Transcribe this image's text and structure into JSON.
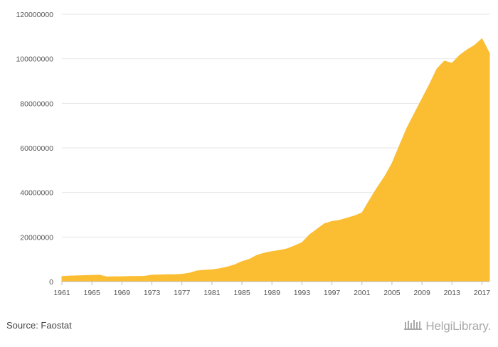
{
  "chart_data": {
    "type": "area",
    "title": "",
    "xlabel": "",
    "ylabel": "",
    "ylim": [
      0,
      120000000
    ],
    "yticks": [
      0,
      20000000,
      40000000,
      60000000,
      80000000,
      100000000,
      120000000
    ],
    "ytick_labels": [
      "0",
      "20000000",
      "40000000",
      "60000000",
      "80000000",
      "100000000",
      "120000000"
    ],
    "xlim": [
      1961,
      2018
    ],
    "xticks": [
      1961,
      1965,
      1969,
      1973,
      1977,
      1981,
      1985,
      1989,
      1993,
      1997,
      2001,
      2005,
      2009,
      2013,
      2017
    ],
    "xtick_labels": [
      "1961",
      "1965",
      "1969",
      "1973",
      "1977",
      "1981",
      "1985",
      "1989",
      "1993",
      "1997",
      "2001",
      "2005",
      "2009",
      "2013",
      "2017"
    ],
    "grid": true,
    "legend": "none",
    "color": "#FBBE32",
    "x": [
      1961,
      1962,
      1963,
      1964,
      1965,
      1966,
      1967,
      1968,
      1969,
      1970,
      1971,
      1972,
      1973,
      1974,
      1975,
      1976,
      1977,
      1978,
      1979,
      1980,
      1981,
      1982,
      1983,
      1984,
      1985,
      1986,
      1987,
      1988,
      1989,
      1990,
      1991,
      1992,
      1993,
      1994,
      1995,
      1996,
      1997,
      1998,
      1999,
      2000,
      2001,
      2002,
      2003,
      2004,
      2005,
      2006,
      2007,
      2008,
      2009,
      2010,
      2011,
      2012,
      2013,
      2014,
      2015,
      2016,
      2017,
      2018
    ],
    "y": [
      2300000,
      2500000,
      2600000,
      2700000,
      2800000,
      2900000,
      2100000,
      2200000,
      2200000,
      2300000,
      2300000,
      2400000,
      2900000,
      3000000,
      3100000,
      3100000,
      3300000,
      3800000,
      4800000,
      5100000,
      5300000,
      5800000,
      6500000,
      7500000,
      9000000,
      10000000,
      11800000,
      12800000,
      13500000,
      14000000,
      14700000,
      16000000,
      17500000,
      21000000,
      23500000,
      26000000,
      27000000,
      27500000,
      28500000,
      29500000,
      30800000,
      36500000,
      42000000,
      47000000,
      53000000,
      61000000,
      69000000,
      75500000,
      82000000,
      88500000,
      95500000,
      99000000,
      98000000,
      101500000,
      104000000,
      106000000,
      109000000,
      102500000
    ]
  },
  "footer": {
    "source": "Source: Faostat",
    "brand": "HelgiLibrary."
  }
}
